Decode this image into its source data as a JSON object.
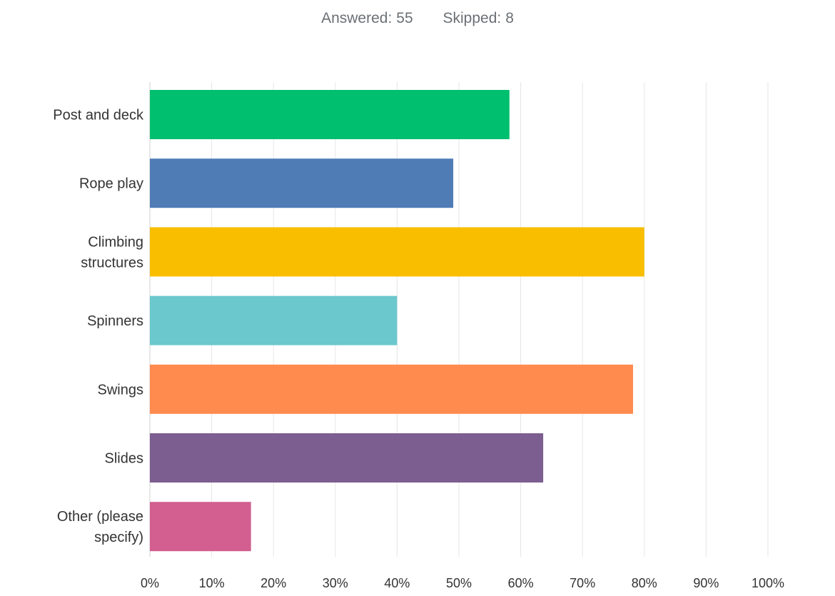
{
  "summary": {
    "answered_label": "Answered:",
    "answered_value": "55",
    "skipped_label": "Skipped:",
    "skipped_value": "8"
  },
  "chart_data": {
    "type": "bar",
    "orientation": "horizontal",
    "title": "",
    "xlabel": "",
    "ylabel": "",
    "categories": [
      [
        "Post and deck"
      ],
      [
        "Rope play"
      ],
      [
        "Climbing",
        "structures"
      ],
      [
        "Spinners"
      ],
      [
        "Swings"
      ],
      [
        "Slides"
      ],
      [
        "Other (please",
        "specify)"
      ]
    ],
    "values": [
      58.18,
      49.09,
      80.0,
      40.0,
      78.18,
      63.64,
      16.36
    ],
    "value_unit": "%",
    "colors": [
      "#00bf6f",
      "#507cb6",
      "#f9be00",
      "#6bc8cd",
      "#ff8b4f",
      "#7d5e90",
      "#d25f90"
    ],
    "xlim": [
      0,
      100
    ],
    "xticks": [
      "0%",
      "10%",
      "20%",
      "30%",
      "40%",
      "50%",
      "60%",
      "70%",
      "80%",
      "90%",
      "100%"
    ],
    "grid": true,
    "legend": "none",
    "grid_color": "#e6e6e6",
    "axis_color": "#d0d0d0"
  }
}
